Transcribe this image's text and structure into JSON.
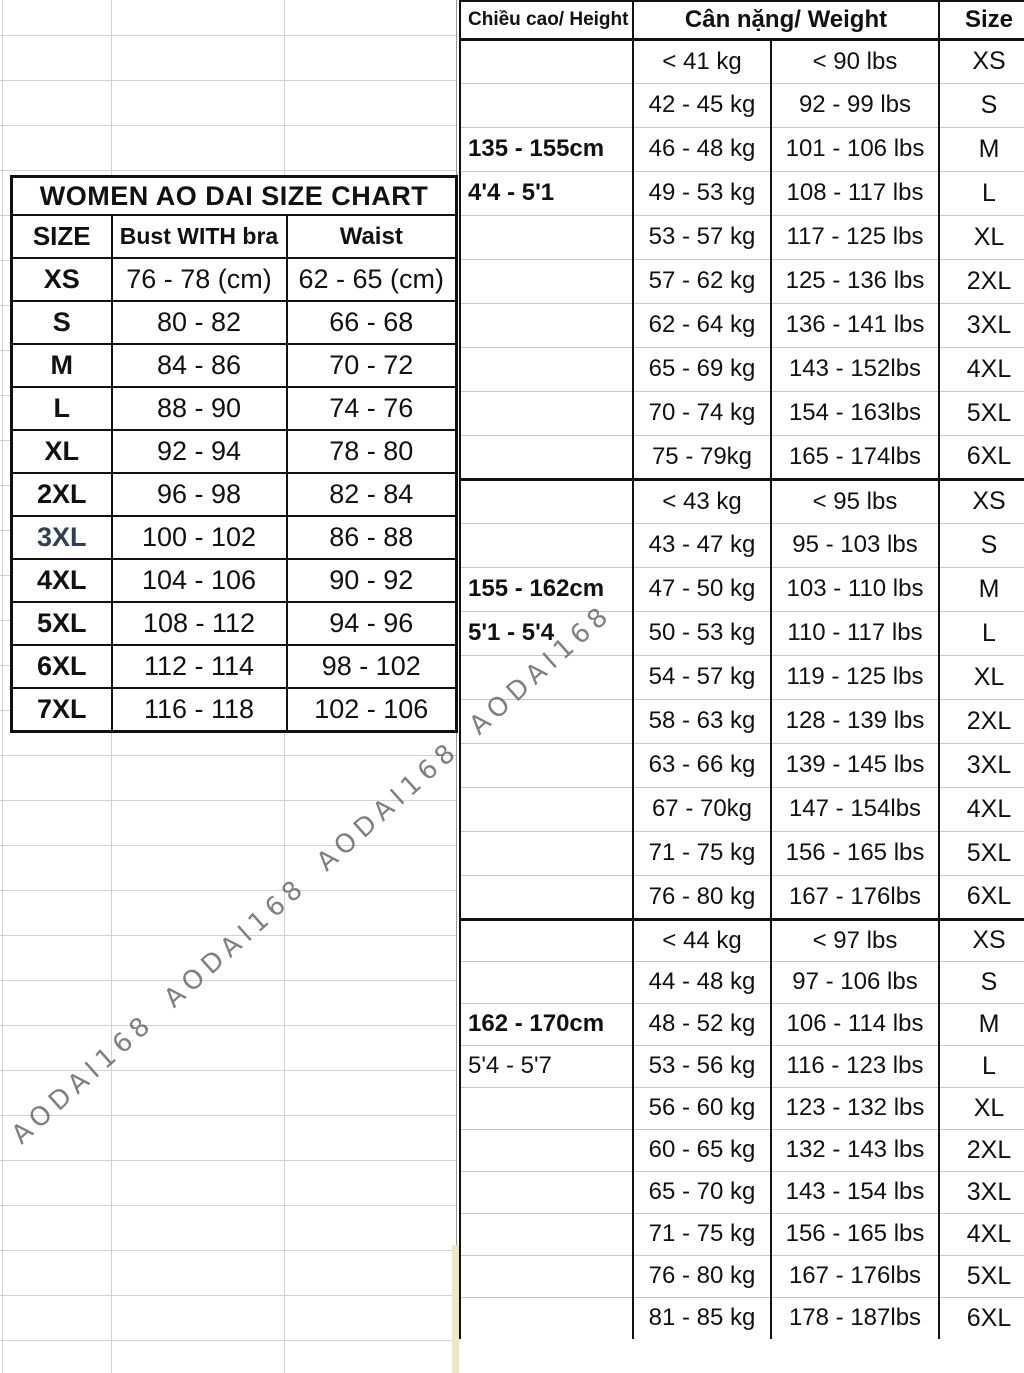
{
  "watermark": {
    "text": "AODAI168 AODAI168 AODAI168 AODAI168"
  },
  "colors": {
    "border_black": "#111111",
    "grid_line": "#d2d2d2",
    "row_separator": "#c8c8c8",
    "watermark_gray": "#6b6b6b",
    "accent_3xl": "#333f50",
    "cream_strip": "#efe6c8"
  },
  "left_table": {
    "title": "WOMEN AO DAI SIZE CHART",
    "headers": [
      "SIZE",
      "Bust WITH bra",
      "Waist"
    ],
    "accent_row": 6,
    "rows": [
      [
        "XS",
        "76 - 78 (cm)",
        "62 - 65 (cm)"
      ],
      [
        "S",
        "80 - 82",
        "66 - 68"
      ],
      [
        "M",
        "84 - 86",
        "70 - 72"
      ],
      [
        "L",
        "88 - 90",
        "74 - 76"
      ],
      [
        "XL",
        "92 - 94",
        "78 - 80"
      ],
      [
        "2XL",
        "96 - 98",
        "82 - 84"
      ],
      [
        "3XL",
        "100 - 102",
        "86 - 88"
      ],
      [
        "4XL",
        "104 - 106",
        "90 - 92"
      ],
      [
        "5XL",
        "108 - 112",
        "94 - 96"
      ],
      [
        "6XL",
        "112 - 114",
        "98 - 102"
      ],
      [
        "7XL",
        "116 - 118",
        "102 - 106"
      ]
    ]
  },
  "right_table": {
    "headers": {
      "height": "Chiều cao/ Height",
      "weight": "Cân nặng/ Weight",
      "size": "Size"
    },
    "sections": [
      {
        "height_cm": "135 - 155cm",
        "height_ft": "4'4 - 5'1",
        "height_ft_bold": true,
        "rows": [
          {
            "kg": "< 41 kg",
            "lbs": "< 90 lbs",
            "size": "XS"
          },
          {
            "kg": "42 - 45 kg",
            "lbs": "92 - 99 lbs",
            "size": "S"
          },
          {
            "kg": "46 - 48 kg",
            "lbs": "101 - 106 lbs",
            "size": "M"
          },
          {
            "kg": "49 - 53 kg",
            "lbs": "108 - 117 lbs",
            "size": "L"
          },
          {
            "kg": "53 - 57 kg",
            "lbs": "117 - 125 lbs",
            "size": "XL"
          },
          {
            "kg": "57 - 62 kg",
            "lbs": "125 - 136 lbs",
            "size": "2XL"
          },
          {
            "kg": "62 - 64 kg",
            "lbs": "136 - 141 lbs",
            "size": "3XL"
          },
          {
            "kg": "65 - 69 kg",
            "lbs": "143 - 152lbs",
            "size": "4XL"
          },
          {
            "kg": "70 - 74 kg",
            "lbs": "154 - 163lbs",
            "size": "5XL"
          },
          {
            "kg": "75 - 79kg",
            "lbs": "165 - 174lbs",
            "size": "6XL"
          }
        ]
      },
      {
        "height_cm": "155 - 162cm",
        "height_ft": "5'1 - 5'4",
        "height_ft_bold": true,
        "rows": [
          {
            "kg": "< 43 kg",
            "lbs": "< 95 lbs",
            "size": "XS"
          },
          {
            "kg": "43 - 47 kg",
            "lbs": "95 - 103 lbs",
            "size": "S"
          },
          {
            "kg": "47 - 50 kg",
            "lbs": "103 - 110 lbs",
            "size": "M"
          },
          {
            "kg": "50 - 53 kg",
            "lbs": "110 - 117 lbs",
            "size": "L"
          },
          {
            "kg": "54 - 57 kg",
            "lbs": "119 - 125 lbs",
            "size": "XL"
          },
          {
            "kg": "58 - 63 kg",
            "lbs": "128 - 139 lbs",
            "size": "2XL"
          },
          {
            "kg": "63 - 66 kg",
            "lbs": "139 - 145 lbs",
            "size": "3XL"
          },
          {
            "kg": "67 - 70kg",
            "lbs": "147 - 154lbs",
            "size": "4XL"
          },
          {
            "kg": "71 - 75 kg",
            "lbs": "156 - 165 lbs",
            "size": "5XL"
          },
          {
            "kg": "76 - 80 kg",
            "lbs": "167 - 176lbs",
            "size": "6XL"
          }
        ]
      },
      {
        "height_cm": "162 - 170cm",
        "height_ft": "5'4 - 5'7",
        "height_ft_bold": false,
        "rows": [
          {
            "kg": "< 44 kg",
            "lbs": "< 97 lbs",
            "size": "XS"
          },
          {
            "kg": "44 - 48 kg",
            "lbs": "97 - 106 lbs",
            "size": "S"
          },
          {
            "kg": "48 - 52 kg",
            "lbs": "106 - 114 lbs",
            "size": "M"
          },
          {
            "kg": "53 - 56 kg",
            "lbs": "116 - 123 lbs",
            "size": "L"
          },
          {
            "kg": "56 - 60 kg",
            "lbs": "123 - 132 lbs",
            "size": "XL"
          },
          {
            "kg": "60 - 65 kg",
            "lbs": "132 - 143 lbs",
            "size": "2XL"
          },
          {
            "kg": "65 - 70 kg",
            "lbs": "143 - 154 lbs",
            "size": "3XL"
          },
          {
            "kg": "71 - 75 kg",
            "lbs": "156 - 165 lbs",
            "size": "4XL"
          },
          {
            "kg": "76 - 80 kg",
            "lbs": "167 - 176lbs",
            "size": "5XL"
          },
          {
            "kg": "81 - 85 kg",
            "lbs": "178 - 187lbs",
            "size": "6XL"
          }
        ]
      }
    ]
  }
}
